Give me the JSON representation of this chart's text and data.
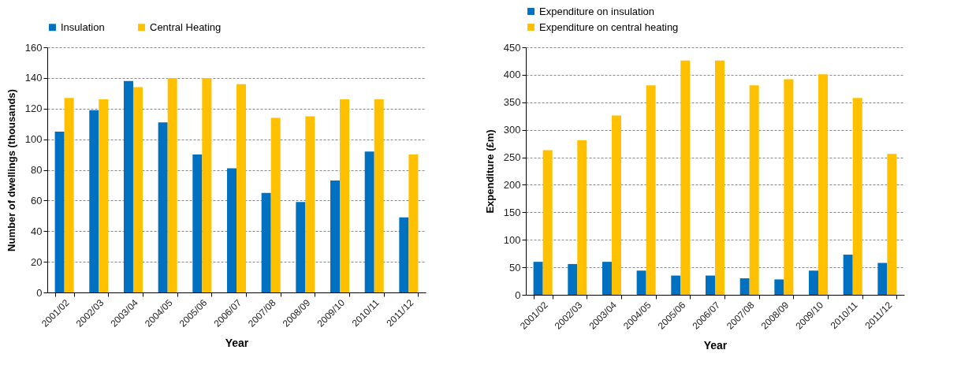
{
  "chart_data": [
    {
      "type": "bar",
      "xlabel": "Year",
      "ylabel": "Number of dwellings (thousands)",
      "categories": [
        "2001/02",
        "2002/03",
        "2003/04",
        "2004/05",
        "2005/06",
        "2006/07",
        "2007/08",
        "2008/09",
        "2009/10",
        "2010/11",
        "2011/12"
      ],
      "series": [
        {
          "name": "Insulation",
          "color": "#0070c0",
          "values": [
            105,
            119,
            138,
            111,
            90,
            81,
            65,
            59,
            73,
            92,
            49
          ]
        },
        {
          "name": "Central Heating",
          "color": "#ffc000",
          "values": [
            127,
            126,
            134,
            140,
            140,
            136,
            114,
            115,
            126,
            126,
            90
          ]
        }
      ],
      "ylim": [
        0,
        160
      ],
      "yticks": [
        0,
        20,
        40,
        60,
        80,
        100,
        120,
        140,
        160
      ],
      "grid": "y",
      "legend": "top"
    },
    {
      "type": "bar",
      "xlabel": "Year",
      "ylabel": "Expenditure (£m)",
      "categories": [
        "2001/02",
        "2002/03",
        "2003/04",
        "2004/05",
        "2005/06",
        "2006/07",
        "2007/08",
        "2008/09",
        "2009/10",
        "2010/11",
        "2011/12"
      ],
      "series": [
        {
          "name": "Expenditure on insulation",
          "color": "#0070c0",
          "values": [
            60,
            56,
            60,
            44,
            35,
            35,
            30,
            28,
            44,
            73,
            58
          ]
        },
        {
          "name": "Expenditure on central heating",
          "color": "#ffc000",
          "values": [
            263,
            281,
            326,
            381,
            426,
            426,
            381,
            392,
            401,
            358,
            256
          ]
        }
      ],
      "ylim": [
        0,
        450
      ],
      "yticks": [
        0,
        50,
        100,
        150,
        200,
        250,
        300,
        350,
        400,
        450
      ],
      "grid": "y",
      "legend": "top"
    }
  ]
}
